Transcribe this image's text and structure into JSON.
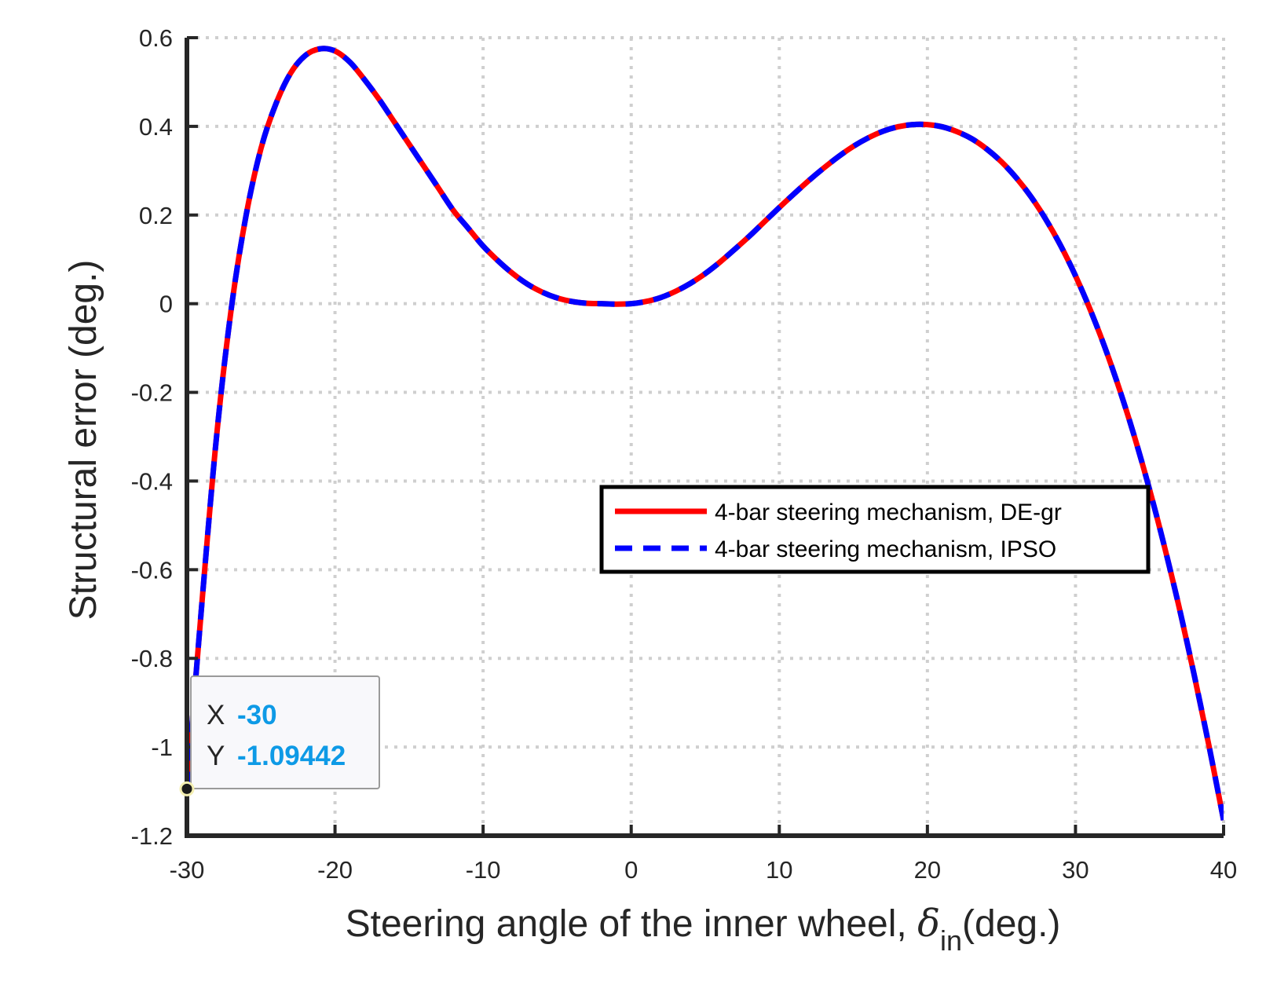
{
  "chart_data": {
    "type": "line",
    "xlabel": "Steering angle of the inner wheel, ",
    "xlabel_symbol": "δ",
    "xlabel_subscript": "in",
    "xlabel_suffix": "(deg.)",
    "ylabel": "Structural error (deg.)",
    "xlim": [
      -30,
      40
    ],
    "ylim": [
      -1.2,
      0.6
    ],
    "xticks": [
      "-30",
      "-20",
      "-10",
      "0",
      "10",
      "20",
      "30",
      "40"
    ],
    "yticks": [
      "0.6",
      "0.4",
      "0.2",
      "0",
      "-0.2",
      "-0.4",
      "-0.6",
      "-0.8",
      "-1",
      "-1.2"
    ],
    "grid": true,
    "legend_position": "right",
    "x": [
      -30,
      -29,
      -28,
      -27,
      -26,
      -25,
      -24,
      -23,
      -22,
      -21,
      -20,
      -19,
      -18,
      -17,
      -16,
      -15,
      -14,
      -13,
      -12,
      -11,
      -10,
      -9,
      -8,
      -7,
      -6,
      -5,
      -4,
      -3,
      -2,
      -1,
      0,
      1,
      2,
      3,
      4,
      5,
      6,
      7,
      8,
      9,
      10,
      11,
      12,
      13,
      14,
      15,
      16,
      17,
      18,
      19,
      20,
      21,
      22,
      23,
      24,
      25,
      26,
      27,
      28,
      29,
      30,
      31,
      32,
      33,
      34,
      35,
      36,
      37,
      38,
      39,
      40
    ],
    "series": [
      {
        "name": "4-bar steering mechanism, DE-gr",
        "color": "#ff0000",
        "style": "solid",
        "values": [
          -1.094,
          -0.68,
          -0.3,
          -0.01,
          0.2,
          0.35,
          0.45,
          0.52,
          0.56,
          0.575,
          0.57,
          0.545,
          0.505,
          0.46,
          0.41,
          0.36,
          0.31,
          0.26,
          0.21,
          0.17,
          0.13,
          0.097,
          0.068,
          0.044,
          0.026,
          0.013,
          0.005,
          0.001,
          0.0,
          -0.001,
          0.0,
          0.005,
          0.014,
          0.028,
          0.046,
          0.068,
          0.094,
          0.123,
          0.153,
          0.185,
          0.217,
          0.248,
          0.278,
          0.306,
          0.332,
          0.355,
          0.374,
          0.389,
          0.399,
          0.404,
          0.404,
          0.399,
          0.388,
          0.372,
          0.349,
          0.32,
          0.284,
          0.241,
          0.19,
          0.131,
          0.063,
          -0.014,
          -0.1,
          -0.196,
          -0.302,
          -0.419,
          -0.547,
          -0.685,
          -0.835,
          -0.995,
          -1.165
        ]
      },
      {
        "name": "4-bar steering mechanism, IPSO",
        "color": "#0000ff",
        "style": "dashed",
        "values": [
          -1.094,
          -0.68,
          -0.3,
          -0.01,
          0.2,
          0.35,
          0.45,
          0.52,
          0.56,
          0.575,
          0.57,
          0.545,
          0.505,
          0.46,
          0.41,
          0.36,
          0.31,
          0.26,
          0.21,
          0.17,
          0.13,
          0.097,
          0.068,
          0.044,
          0.026,
          0.013,
          0.005,
          0.001,
          0.0,
          -0.001,
          0.0,
          0.005,
          0.014,
          0.028,
          0.046,
          0.068,
          0.094,
          0.123,
          0.153,
          0.185,
          0.217,
          0.248,
          0.278,
          0.306,
          0.332,
          0.355,
          0.374,
          0.389,
          0.399,
          0.404,
          0.404,
          0.399,
          0.388,
          0.372,
          0.349,
          0.32,
          0.284,
          0.241,
          0.19,
          0.131,
          0.063,
          -0.014,
          -0.1,
          -0.196,
          -0.302,
          -0.419,
          -0.547,
          -0.685,
          -0.835,
          -0.995,
          -1.165
        ]
      }
    ],
    "datatip": {
      "x_key": "X",
      "x_value": "-30",
      "y_key": "Y",
      "y_value": "-1.09442",
      "point": [
        -30,
        -1.09442
      ]
    }
  }
}
